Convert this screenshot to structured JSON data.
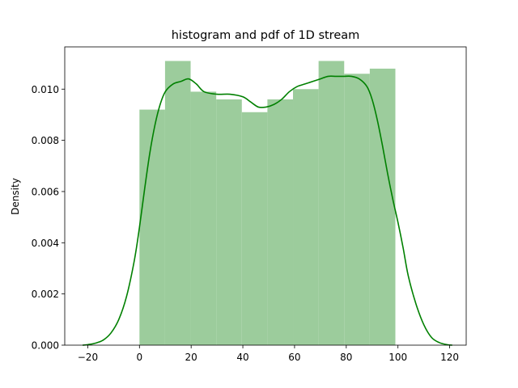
{
  "chart_data": {
    "type": "bar",
    "title": "histogram and pdf of 1D stream",
    "xlabel": "",
    "ylabel": "Density",
    "xlim": [
      -28.9,
      126.4
    ],
    "ylim": [
      0,
      0.01165
    ],
    "xticks": [
      -20,
      0,
      20,
      40,
      60,
      80,
      100,
      120
    ],
    "xtick_labels": [
      "−20",
      "0",
      "20",
      "40",
      "60",
      "80",
      "100",
      "120"
    ],
    "yticks": [
      0,
      0.002,
      0.004,
      0.006,
      0.008,
      0.01
    ],
    "ytick_labels": [
      "0.000",
      "0.002",
      "0.004",
      "0.006",
      "0.008",
      "0.010"
    ],
    "grid": false,
    "histogram": {
      "bin_edges": [
        0,
        9.9,
        19.8,
        29.7,
        39.6,
        49.5,
        59.4,
        69.3,
        79.2,
        89.1,
        99
      ],
      "density": [
        0.0092,
        0.0111,
        0.0099,
        0.0096,
        0.0091,
        0.0096,
        0.01,
        0.0111,
        0.0106,
        0.0108
      ],
      "color": "#9ccc9c"
    },
    "kde": {
      "color": "#008000",
      "x": [
        -22,
        -20,
        -17,
        -14,
        -11,
        -8,
        -5,
        -2,
        0,
        2,
        4,
        6,
        8,
        10,
        13,
        16,
        19,
        22,
        25,
        30,
        35,
        40,
        43,
        46,
        49,
        52,
        55,
        58,
        61,
        64,
        67,
        70,
        73,
        76,
        79,
        82,
        85,
        88,
        90,
        92,
        94,
        96,
        98,
        100,
        102,
        104,
        107,
        110,
        113,
        116,
        119,
        121
      ],
      "y": [
        0.0,
        2e-05,
        8e-05,
        0.0002,
        0.00048,
        0.001,
        0.0019,
        0.0033,
        0.0046,
        0.0061,
        0.0075,
        0.0086,
        0.0094,
        0.0099,
        0.0102,
        0.0103,
        0.0104,
        0.0102,
        0.0099,
        0.0098,
        0.0098,
        0.0097,
        0.0095,
        0.0093,
        0.0093,
        0.0094,
        0.0096,
        0.0099,
        0.0101,
        0.0102,
        0.0103,
        0.0104,
        0.0105,
        0.0105,
        0.0105,
        0.0105,
        0.0104,
        0.0101,
        0.0096,
        0.0088,
        0.0078,
        0.0067,
        0.0057,
        0.0048,
        0.0038,
        0.0027,
        0.0016,
        0.0008,
        0.0003,
        0.0001,
        2e-05,
        0.0
      ]
    }
  }
}
